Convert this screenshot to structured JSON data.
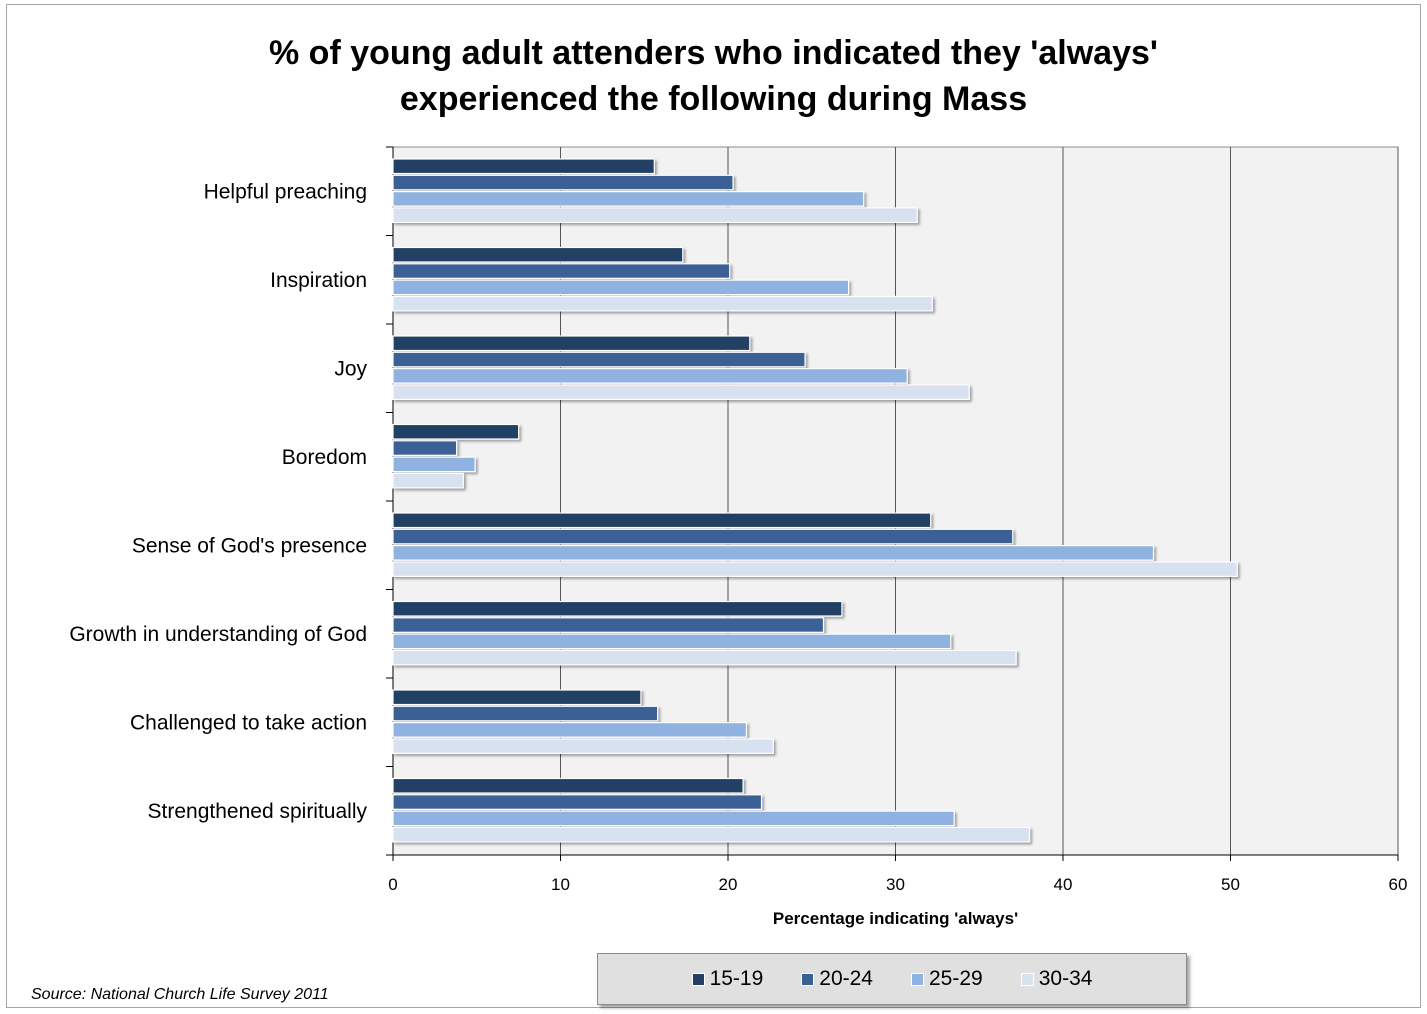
{
  "chart_data": {
    "type": "bar",
    "orientation": "horizontal",
    "title": "% of young adult attenders who indicated they 'always' experienced the following during Mass",
    "title_lines": [
      "% of young adult attenders who indicated they 'always'",
      "experienced the following during Mass"
    ],
    "xlabel": "Percentage indicating 'always'",
    "ylabel": "",
    "xlim": [
      0,
      60
    ],
    "xticks": [
      0,
      10,
      20,
      30,
      40,
      50,
      60
    ],
    "grid": "vertical",
    "legend_position": "bottom",
    "categories": [
      "Helpful preaching",
      "Inspiration",
      "Joy",
      "Boredom",
      "Sense of God's presence",
      "Growth in understanding of God",
      "Challenged to take action",
      "Strengthened spiritually"
    ],
    "series": [
      {
        "name": "15-19",
        "color": "#243f63",
        "values": [
          15.6,
          17.3,
          21.3,
          7.5,
          32.1,
          26.8,
          14.8,
          20.9
        ]
      },
      {
        "name": "20-24",
        "color": "#3a6196",
        "values": [
          20.3,
          20.1,
          24.6,
          3.8,
          37.0,
          25.7,
          15.8,
          22.0
        ]
      },
      {
        "name": "25-29",
        "color": "#8fb2e0",
        "values": [
          28.1,
          27.2,
          30.7,
          4.9,
          45.4,
          33.3,
          21.1,
          33.5
        ]
      },
      {
        "name": "30-34",
        "color": "#d7e1f0",
        "values": [
          31.3,
          32.2,
          34.4,
          4.2,
          50.4,
          37.2,
          22.7,
          38.0
        ]
      }
    ]
  },
  "plot_background": "#f2f2f2",
  "gridline_color": "#555555",
  "source_note": "Source: National Church Life Survey 2011"
}
